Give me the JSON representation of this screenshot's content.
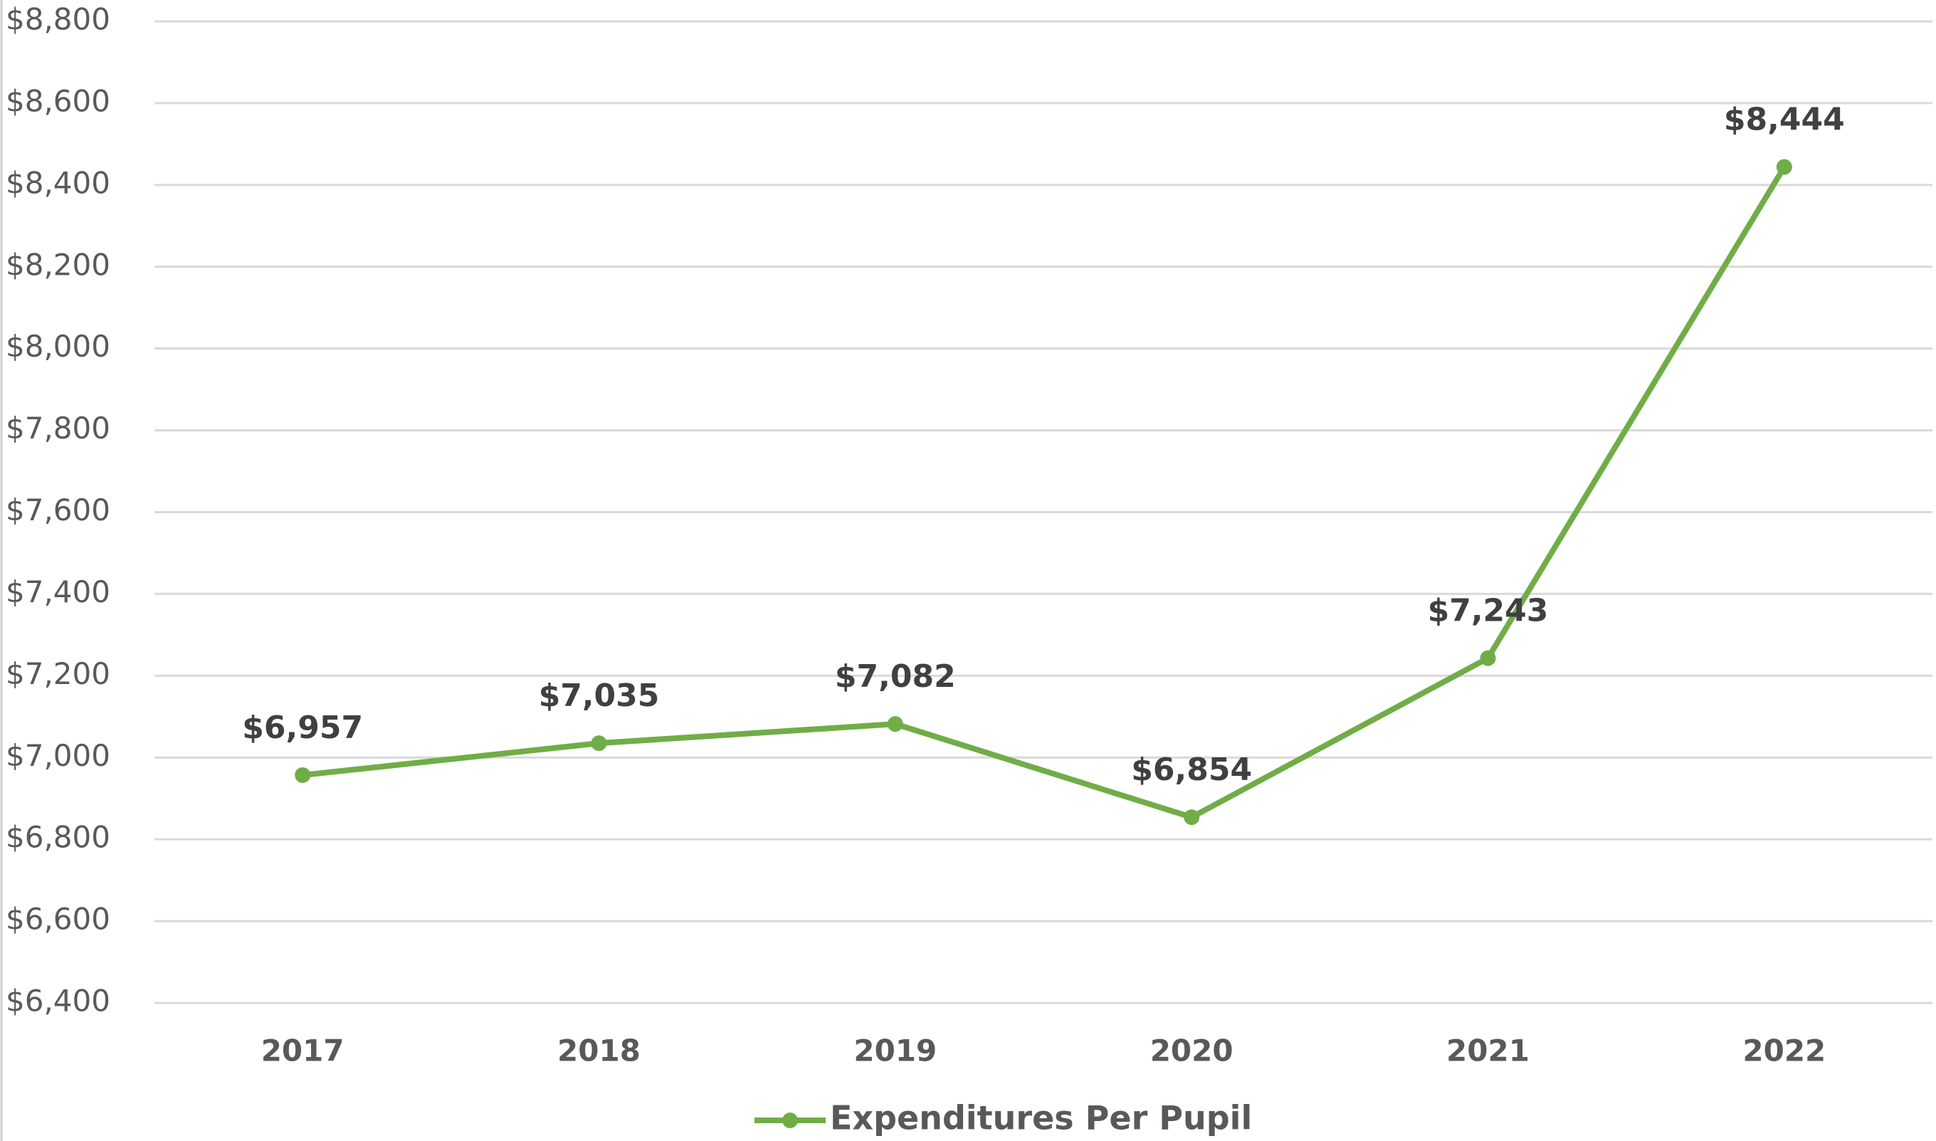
{
  "chart_data": {
    "type": "line",
    "categories": [
      "2017",
      "2018",
      "2019",
      "2020",
      "2021",
      "2022"
    ],
    "series": [
      {
        "name": "Expenditures Per Pupil",
        "color": "#70ad47",
        "values": [
          6957,
          7035,
          7082,
          6854,
          7243,
          8444
        ],
        "value_labels": [
          "$6,957",
          "$7,035",
          "$7,082",
          "$6,854",
          "$7,243",
          "$8,444"
        ]
      }
    ],
    "ylim": [
      6400,
      8800
    ],
    "yticks": [
      {
        "value": 6400,
        "label": "$6,400"
      },
      {
        "value": 6600,
        "label": "$6,600"
      },
      {
        "value": 6800,
        "label": "$6,800"
      },
      {
        "value": 7000,
        "label": "$7,000"
      },
      {
        "value": 7200,
        "label": "$7,200"
      },
      {
        "value": 7400,
        "label": "$7,400"
      },
      {
        "value": 7600,
        "label": "$7,600"
      },
      {
        "value": 7800,
        "label": "$7,800"
      },
      {
        "value": 8000,
        "label": "$8,000"
      },
      {
        "value": 8200,
        "label": "$8,200"
      },
      {
        "value": 8400,
        "label": "$8,400"
      },
      {
        "value": 8600,
        "label": "$8,600"
      },
      {
        "value": 8800,
        "label": "$8,800"
      }
    ],
    "grid": true,
    "legend": "bottom"
  }
}
